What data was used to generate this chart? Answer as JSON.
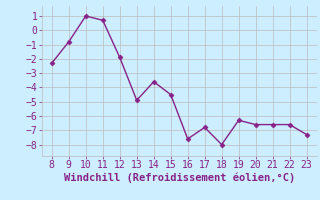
{
  "x": [
    8,
    9,
    10,
    11,
    12,
    13,
    14,
    15,
    16,
    17,
    18,
    19,
    20,
    21,
    22,
    23
  ],
  "y": [
    -2.3,
    -0.8,
    1.0,
    0.7,
    -1.9,
    -4.9,
    -3.6,
    -4.5,
    -7.6,
    -6.8,
    -8.0,
    -6.3,
    -6.6,
    -6.6,
    -6.6,
    -7.3
  ],
  "line_color": "#882288",
  "marker_color": "#882288",
  "bg_color": "#cceeff",
  "grid_color": "#bbbbbb",
  "xlabel": "Windchill (Refroidissement éolien,°C)",
  "xlabel_color": "#882288",
  "xlabel_fontsize": 7.5,
  "xticks": [
    8,
    9,
    10,
    11,
    12,
    13,
    14,
    15,
    16,
    17,
    18,
    19,
    20,
    21,
    22,
    23
  ],
  "yticks": [
    -8,
    -7,
    -6,
    -5,
    -4,
    -3,
    -2,
    -1,
    0,
    1
  ],
  "ylim": [
    -8.8,
    1.7
  ],
  "xlim": [
    7.4,
    23.6
  ],
  "tick_fontsize": 7,
  "tick_color": "#882288",
  "marker_size": 2.5,
  "line_width": 1.0
}
